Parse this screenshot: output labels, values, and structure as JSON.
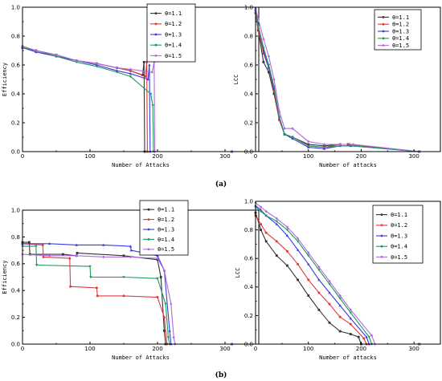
{
  "panel_labels": [
    "(a)",
    "(b)"
  ],
  "legend_labels": [
    "θ=1.1",
    "θ=1.2",
    "θ=1.3",
    "θ=1.4",
    "θ=1.5"
  ],
  "series_colors": [
    "#333333",
    "#e03a3a",
    "#3a3ae0",
    "#1a9a5a",
    "#b06ae0"
  ],
  "chart_data": [
    {
      "type": "line",
      "panel": "(a)",
      "side": "left",
      "xlabel": "Number of Attacks",
      "ylabel": "Efficiency",
      "xlim": [
        0,
        350
      ],
      "ylim": [
        0,
        1.0
      ],
      "xticks": [
        0,
        100,
        200,
        300
      ],
      "yticks": [
        0.0,
        0.2,
        0.4,
        0.6,
        0.8,
        1.0
      ],
      "grid": false,
      "legend_position": "top-right",
      "series": [
        {
          "name": "θ=1.1",
          "x": [
            0,
            20,
            50,
            80,
            110,
            140,
            160,
            178,
            180,
            181,
            310
          ],
          "y": [
            0.72,
            0.7,
            0.67,
            0.63,
            0.61,
            0.58,
            0.56,
            0.53,
            0.62,
            0.0,
            0.0
          ]
        },
        {
          "name": "θ=1.2",
          "x": [
            0,
            20,
            50,
            80,
            110,
            140,
            160,
            182,
            184,
            185,
            310
          ],
          "y": [
            0.73,
            0.7,
            0.67,
            0.63,
            0.61,
            0.58,
            0.56,
            0.52,
            0.62,
            0.0,
            0.0
          ]
        },
        {
          "name": "θ=1.3",
          "x": [
            0,
            20,
            50,
            80,
            110,
            140,
            160,
            186,
            188,
            189,
            310
          ],
          "y": [
            0.72,
            0.69,
            0.66,
            0.63,
            0.6,
            0.56,
            0.54,
            0.5,
            0.6,
            0.0,
            0.0
          ]
        },
        {
          "name": "θ=1.4",
          "x": [
            0,
            20,
            50,
            80,
            110,
            140,
            160,
            190,
            193,
            194,
            310
          ],
          "y": [
            0.72,
            0.7,
            0.66,
            0.62,
            0.59,
            0.55,
            0.52,
            0.4,
            0.32,
            0.0,
            0.0
          ]
        },
        {
          "name": "θ=1.5",
          "x": [
            0,
            20,
            50,
            80,
            110,
            140,
            160,
            192,
            195,
            196,
            310
          ],
          "y": [
            0.73,
            0.7,
            0.67,
            0.63,
            0.61,
            0.58,
            0.57,
            0.55,
            0.62,
            0.0,
            0.0
          ]
        }
      ]
    },
    {
      "type": "line",
      "panel": "(a)",
      "side": "right",
      "xlabel": "Number of attacks",
      "ylabel": "LCC",
      "xlim": [
        0,
        350
      ],
      "ylim": [
        0,
        1.0
      ],
      "xticks": [
        0,
        100,
        200,
        300
      ],
      "yticks": [
        0.0,
        0.2,
        0.4,
        0.6,
        0.8,
        1.0
      ],
      "grid": false,
      "legend_position": "top-right",
      "series": [
        {
          "name": "θ=1.1",
          "x": [
            0,
            5,
            15,
            25,
            35,
            45,
            55,
            70,
            100,
            130,
            160,
            175,
            310
          ],
          "y": [
            0.96,
            0.84,
            0.62,
            0.55,
            0.4,
            0.22,
            0.12,
            0.1,
            0.05,
            0.04,
            0.05,
            0.05,
            0.0
          ]
        },
        {
          "name": "θ=1.2",
          "x": [
            0,
            5,
            15,
            25,
            35,
            45,
            55,
            70,
            100,
            130,
            160,
            178,
            310
          ],
          "y": [
            0.96,
            0.85,
            0.68,
            0.58,
            0.42,
            0.22,
            0.12,
            0.1,
            0.04,
            0.03,
            0.05,
            0.05,
            0.0
          ]
        },
        {
          "name": "θ=1.3",
          "x": [
            0,
            5,
            15,
            25,
            35,
            45,
            55,
            70,
            100,
            130,
            160,
            180,
            310
          ],
          "y": [
            0.98,
            0.88,
            0.7,
            0.58,
            0.44,
            0.24,
            0.12,
            0.09,
            0.03,
            0.02,
            0.04,
            0.04,
            0.0
          ]
        },
        {
          "name": "θ=1.4",
          "x": [
            0,
            5,
            15,
            25,
            35,
            45,
            55,
            70,
            100,
            130,
            160,
            182,
            310
          ],
          "y": [
            0.98,
            0.87,
            0.72,
            0.6,
            0.45,
            0.24,
            0.12,
            0.1,
            0.04,
            0.03,
            0.04,
            0.04,
            0.0
          ]
        },
        {
          "name": "θ=1.5",
          "x": [
            0,
            5,
            15,
            25,
            35,
            45,
            55,
            70,
            100,
            130,
            160,
            185,
            310
          ],
          "y": [
            0.99,
            0.92,
            0.78,
            0.66,
            0.5,
            0.28,
            0.16,
            0.16,
            0.07,
            0.05,
            0.05,
            0.05,
            0.0
          ]
        }
      ]
    },
    {
      "type": "line",
      "panel": "(b)",
      "side": "left",
      "xlabel": "Number of Attacks",
      "ylabel": "Efficiency",
      "xlim": [
        0,
        350
      ],
      "ylim": [
        0,
        1.0
      ],
      "xticks": [
        0,
        100,
        200,
        300
      ],
      "yticks": [
        0.0,
        0.2,
        0.4,
        0.6,
        0.8,
        1.0
      ],
      "grid": false,
      "legend_position": "top-right",
      "series": [
        {
          "name": "θ=1.1",
          "x": [
            0,
            10,
            11,
            60,
            80,
            81,
            150,
            200,
            205,
            210,
            212,
            310
          ],
          "y": [
            0.76,
            0.76,
            0.67,
            0.67,
            0.66,
            0.68,
            0.66,
            0.63,
            0.5,
            0.1,
            0.0,
            0.0
          ]
        },
        {
          "name": "θ=1.2",
          "x": [
            0,
            30,
            31,
            70,
            71,
            110,
            111,
            150,
            200,
            210,
            214,
            310
          ],
          "y": [
            0.75,
            0.74,
            0.65,
            0.64,
            0.43,
            0.42,
            0.36,
            0.36,
            0.35,
            0.2,
            0.0,
            0.0
          ]
        },
        {
          "name": "θ=1.3",
          "x": [
            0,
            40,
            80,
            120,
            160,
            161,
            200,
            210,
            218,
            220,
            310
          ],
          "y": [
            0.75,
            0.75,
            0.74,
            0.74,
            0.73,
            0.7,
            0.66,
            0.55,
            0.1,
            0.0,
            0.0
          ]
        },
        {
          "name": "θ=1.4",
          "x": [
            0,
            20,
            21,
            100,
            101,
            150,
            200,
            212,
            216,
            218,
            310
          ],
          "y": [
            0.73,
            0.73,
            0.59,
            0.58,
            0.5,
            0.5,
            0.49,
            0.3,
            0.05,
            0.0,
            0.0
          ]
        },
        {
          "name": "θ=1.5",
          "x": [
            0,
            40,
            80,
            120,
            160,
            200,
            210,
            220,
            224,
            226,
            310
          ],
          "y": [
            0.67,
            0.66,
            0.66,
            0.65,
            0.65,
            0.64,
            0.55,
            0.3,
            0.05,
            0.0,
            0.0
          ]
        }
      ]
    },
    {
      "type": "line",
      "panel": "(b)",
      "side": "right",
      "xlabel": "Number of attacks",
      "ylabel": "LCC",
      "xlim": [
        0,
        350
      ],
      "ylim": [
        0,
        1.0
      ],
      "xticks": [
        0,
        100,
        200,
        300
      ],
      "yticks": [
        0.0,
        0.2,
        0.4,
        0.6,
        0.8,
        1.0
      ],
      "grid": false,
      "legend_position": "top-right",
      "series": [
        {
          "name": "θ=1.1",
          "x": [
            0,
            10,
            20,
            40,
            60,
            80,
            100,
            120,
            140,
            160,
            180,
            195,
            200,
            310
          ],
          "y": [
            0.92,
            0.8,
            0.72,
            0.62,
            0.55,
            0.45,
            0.34,
            0.24,
            0.15,
            0.09,
            0.07,
            0.05,
            0.0,
            0.0
          ]
        },
        {
          "name": "θ=1.2",
          "x": [
            0,
            10,
            20,
            40,
            60,
            80,
            100,
            120,
            140,
            160,
            180,
            205,
            210,
            310
          ],
          "y": [
            0.9,
            0.84,
            0.78,
            0.72,
            0.65,
            0.56,
            0.45,
            0.36,
            0.28,
            0.19,
            0.14,
            0.04,
            0.0,
            0.0
          ]
        },
        {
          "name": "θ=1.3",
          "x": [
            0,
            10,
            20,
            40,
            60,
            80,
            100,
            120,
            140,
            160,
            180,
            210,
            215,
            310
          ],
          "y": [
            0.97,
            0.94,
            0.9,
            0.84,
            0.76,
            0.66,
            0.56,
            0.45,
            0.36,
            0.27,
            0.18,
            0.05,
            0.0,
            0.0
          ]
        },
        {
          "name": "θ=1.4",
          "x": [
            0,
            10,
            20,
            40,
            60,
            80,
            100,
            120,
            140,
            160,
            180,
            215,
            220,
            310
          ],
          "y": [
            0.96,
            0.93,
            0.9,
            0.86,
            0.8,
            0.72,
            0.62,
            0.52,
            0.42,
            0.32,
            0.22,
            0.05,
            0.0,
            0.0
          ]
        },
        {
          "name": "θ=1.5",
          "x": [
            0,
            10,
            20,
            40,
            60,
            80,
            100,
            120,
            140,
            160,
            180,
            220,
            226,
            310
          ],
          "y": [
            0.99,
            0.96,
            0.93,
            0.88,
            0.82,
            0.74,
            0.64,
            0.54,
            0.44,
            0.34,
            0.24,
            0.06,
            0.0,
            0.0
          ]
        }
      ]
    }
  ]
}
